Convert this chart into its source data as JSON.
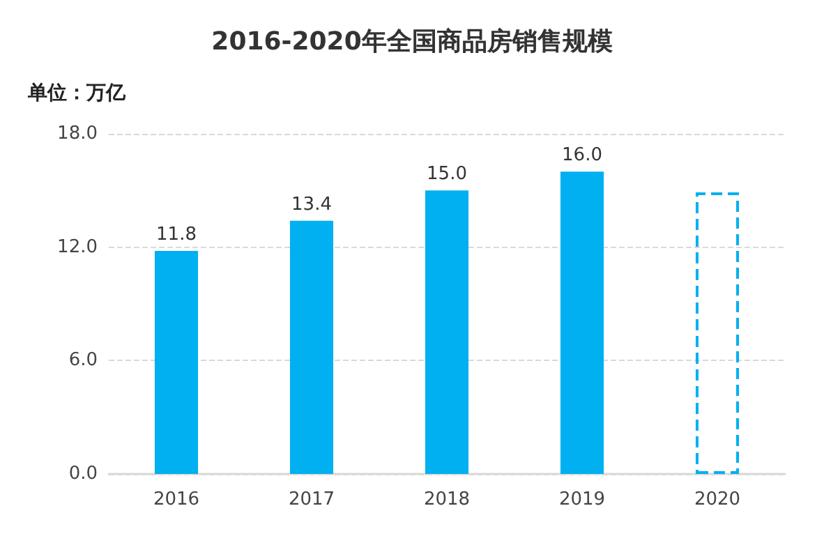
{
  "chart_data": {
    "type": "bar",
    "title": "2016-2020年全国商品房销售规模",
    "ylabel": "单位：万亿",
    "categories": [
      "2016",
      "2017",
      "2018",
      "2019",
      "2020"
    ],
    "series": [
      {
        "color": "#00b0f0",
        "values": [
          11.8,
          13.4,
          15.0,
          16.0,
          null
        ],
        "value_labels": [
          "11.8",
          "13.4",
          "15.0",
          "16.0",
          null
        ]
      },
      {
        "color": "#00b0f0",
        "values": [
          null,
          null,
          null,
          null,
          14.9
        ],
        "line_style": "dashed"
      }
    ],
    "stacked": true,
    "ylim": [
      0,
      18
    ],
    "yticks": [
      {
        "value": 0,
        "label": "0.0"
      },
      {
        "value": 6,
        "label": "6.0"
      },
      {
        "value": 12,
        "label": "12.0"
      },
      {
        "value": 18,
        "label": "18.0"
      }
    ],
    "grid": "y"
  }
}
